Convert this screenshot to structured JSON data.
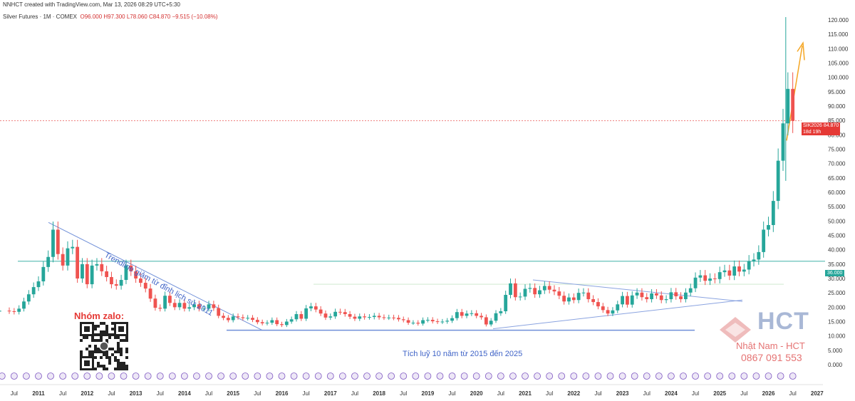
{
  "header": {
    "line1": "NNHCT created with TradingView.com, Mar 13, 2026 08:29 UTC+5:30",
    "instrument": "Silver Futures · 1M · COMEX",
    "ohlc": "O96.000 H97.300 L78.060 C84.870 −9.515 (−10.08%)"
  },
  "badges": {
    "price_symbol": "SIK2026",
    "price_value": "84.870",
    "price_time": "18d 19h",
    "level_value": "36.000"
  },
  "annotations": {
    "trendline": "Trendline giảm từ đỉnh lịch sử 2011",
    "accumulation": "Tích luỹ 10 năm từ 2015 đến 2025"
  },
  "branding": {
    "zalo": "Nhóm zalo:",
    "logo": "HCT",
    "name": "Nhật Nam - HCT",
    "phone": "0867 091 553"
  },
  "colors": {
    "up": "#26a69a",
    "down": "#ef5350",
    "trend": "#3f63c7",
    "arrow": "#f5a623",
    "level": "#26a69a",
    "price": "#e53935"
  },
  "chart_data": {
    "type": "candlestick",
    "y_ticks": [
      "120.000",
      "115.000",
      "110.000",
      "105.000",
      "100.000",
      "95.000",
      "90.000",
      "85.000",
      "80.000",
      "75.000",
      "70.000",
      "65.000",
      "60.000",
      "55.000",
      "50.000",
      "45.000",
      "40.000",
      "35.000",
      "30.000",
      "25.000",
      "20.000",
      "15.000",
      "10.000",
      "5.000",
      "0.000"
    ],
    "ylim": [
      0,
      120
    ],
    "x_ticks": [
      {
        "label": "Jul",
        "t": 2010.5
      },
      {
        "label": "2011",
        "t": 2011
      },
      {
        "label": "Jul",
        "t": 2011.5
      },
      {
        "label": "2012",
        "t": 2012
      },
      {
        "label": "Jul",
        "t": 2012.5
      },
      {
        "label": "2013",
        "t": 2013
      },
      {
        "label": "Jul",
        "t": 2013.5
      },
      {
        "label": "2014",
        "t": 2014
      },
      {
        "label": "Jul",
        "t": 2014.5
      },
      {
        "label": "2015",
        "t": 2015
      },
      {
        "label": "Jul",
        "t": 2015.5
      },
      {
        "label": "2016",
        "t": 2016
      },
      {
        "label": "Jul",
        "t": 2016.5
      },
      {
        "label": "2017",
        "t": 2017
      },
      {
        "label": "Jul",
        "t": 2017.5
      },
      {
        "label": "2018",
        "t": 2018
      },
      {
        "label": "Jul",
        "t": 2018.5
      },
      {
        "label": "2019",
        "t": 2019
      },
      {
        "label": "Jul",
        "t": 2019.5
      },
      {
        "label": "2020",
        "t": 2020
      },
      {
        "label": "Jul",
        "t": 2020.5
      },
      {
        "label": "2021",
        "t": 2021
      },
      {
        "label": "Jul",
        "t": 2021.5
      },
      {
        "label": "2022",
        "t": 2022
      },
      {
        "label": "Jul",
        "t": 2022.5
      },
      {
        "label": "2023",
        "t": 2023
      },
      {
        "label": "Jul",
        "t": 2023.5
      },
      {
        "label": "2024",
        "t": 2024
      },
      {
        "label": "Jul",
        "t": 2024.5
      },
      {
        "label": "2025",
        "t": 2025
      },
      {
        "label": "Jul",
        "t": 2025.5
      },
      {
        "label": "2026",
        "t": 2026
      },
      {
        "label": "Jul",
        "t": 2026.5
      },
      {
        "label": "2027",
        "t": 2027
      }
    ],
    "closes": [
      [
        2010.0,
        18.5
      ],
      [
        2010.2,
        18.8
      ],
      [
        2010.4,
        18.6
      ],
      [
        2010.5,
        18.4
      ],
      [
        2010.6,
        19.5
      ],
      [
        2010.7,
        22.0
      ],
      [
        2010.8,
        24.5
      ],
      [
        2010.9,
        27.0
      ],
      [
        2011.0,
        29.0
      ],
      [
        2011.1,
        34.0
      ],
      [
        2011.2,
        37.5
      ],
      [
        2011.3,
        47.0
      ],
      [
        2011.4,
        38.5
      ],
      [
        2011.5,
        34.5
      ],
      [
        2011.6,
        40.5
      ],
      [
        2011.7,
        41.0
      ],
      [
        2011.8,
        30.0
      ],
      [
        2011.9,
        35.0
      ],
      [
        2012.0,
        28.0
      ],
      [
        2012.1,
        34.5
      ],
      [
        2012.2,
        35.0
      ],
      [
        2012.3,
        32.5
      ],
      [
        2012.4,
        30.5
      ],
      [
        2012.5,
        28.0
      ],
      [
        2012.6,
        27.5
      ],
      [
        2012.7,
        29.5
      ],
      [
        2012.8,
        34.5
      ],
      [
        2012.9,
        32.5
      ],
      [
        2013.0,
        30.0
      ],
      [
        2013.1,
        28.5
      ],
      [
        2013.2,
        26.5
      ],
      [
        2013.3,
        23.0
      ],
      [
        2013.4,
        19.8
      ],
      [
        2013.5,
        19.5
      ],
      [
        2013.6,
        24.0
      ],
      [
        2013.7,
        21.5
      ],
      [
        2013.8,
        20.0
      ],
      [
        2013.9,
        21.5
      ],
      [
        2014.0,
        19.5
      ],
      [
        2014.1,
        20.0
      ],
      [
        2014.2,
        21.0
      ],
      [
        2014.3,
        19.5
      ],
      [
        2014.4,
        19.5
      ],
      [
        2014.5,
        21.0
      ],
      [
        2014.6,
        19.7
      ],
      [
        2014.7,
        17.0
      ],
      [
        2014.8,
        16.3
      ],
      [
        2014.9,
        15.5
      ],
      [
        2015.0,
        16.8
      ],
      [
        2015.1,
        16.5
      ],
      [
        2015.2,
        16.2
      ],
      [
        2015.3,
        16.3
      ],
      [
        2015.4,
        15.6
      ],
      [
        2015.5,
        14.8
      ],
      [
        2015.6,
        14.4
      ],
      [
        2015.7,
        14.6
      ],
      [
        2015.8,
        15.5
      ],
      [
        2015.9,
        14.1
      ],
      [
        2016.0,
        13.8
      ],
      [
        2016.1,
        15.0
      ],
      [
        2016.2,
        15.8
      ],
      [
        2016.3,
        17.6
      ],
      [
        2016.4,
        16.0
      ],
      [
        2016.5,
        19.6
      ],
      [
        2016.6,
        20.3
      ],
      [
        2016.7,
        19.2
      ],
      [
        2016.8,
        17.8
      ],
      [
        2016.9,
        16.4
      ],
      [
        2017.0,
        16.8
      ],
      [
        2017.1,
        18.4
      ],
      [
        2017.2,
        18.3
      ],
      [
        2017.3,
        17.6
      ],
      [
        2017.4,
        16.7
      ],
      [
        2017.5,
        16.0
      ],
      [
        2017.6,
        16.8
      ],
      [
        2017.7,
        16.5
      ],
      [
        2017.8,
        16.6
      ],
      [
        2017.9,
        17.0
      ],
      [
        2018.0,
        16.5
      ],
      [
        2018.1,
        16.4
      ],
      [
        2018.2,
        16.4
      ],
      [
        2018.3,
        16.3
      ],
      [
        2018.4,
        15.8
      ],
      [
        2018.5,
        15.5
      ],
      [
        2018.6,
        14.6
      ],
      [
        2018.7,
        14.6
      ],
      [
        2018.8,
        14.3
      ],
      [
        2018.9,
        15.5
      ],
      [
        2019.0,
        15.6
      ],
      [
        2019.1,
        15.1
      ],
      [
        2019.2,
        14.9
      ],
      [
        2019.3,
        15.0
      ],
      [
        2019.4,
        15.3
      ],
      [
        2019.5,
        16.2
      ],
      [
        2019.6,
        18.3
      ],
      [
        2019.7,
        17.0
      ],
      [
        2019.8,
        17.8
      ],
      [
        2019.9,
        17.9
      ],
      [
        2020.0,
        17.0
      ],
      [
        2020.1,
        16.5
      ],
      [
        2020.2,
        14.0
      ],
      [
        2020.3,
        15.3
      ],
      [
        2020.4,
        17.9
      ],
      [
        2020.5,
        18.6
      ],
      [
        2020.6,
        24.3
      ],
      [
        2020.7,
        28.3
      ],
      [
        2020.8,
        23.5
      ],
      [
        2020.9,
        23.7
      ],
      [
        2021.0,
        26.4
      ],
      [
        2021.1,
        26.7
      ],
      [
        2021.2,
        24.5
      ],
      [
        2021.3,
        25.9
      ],
      [
        2021.4,
        27.4
      ],
      [
        2021.5,
        26.1
      ],
      [
        2021.6,
        25.5
      ],
      [
        2021.7,
        24.0
      ],
      [
        2021.8,
        22.0
      ],
      [
        2021.9,
        23.4
      ],
      [
        2022.0,
        22.5
      ],
      [
        2022.1,
        25.0
      ],
      [
        2022.2,
        25.1
      ],
      [
        2022.3,
        22.8
      ],
      [
        2022.4,
        21.8
      ],
      [
        2022.5,
        20.3
      ],
      [
        2022.6,
        19.0
      ],
      [
        2022.7,
        17.8
      ],
      [
        2022.8,
        18.9
      ],
      [
        2022.9,
        21.0
      ],
      [
        2023.0,
        23.9
      ],
      [
        2023.1,
        20.9
      ],
      [
        2023.2,
        24.1
      ],
      [
        2023.3,
        25.1
      ],
      [
        2023.4,
        23.5
      ],
      [
        2023.5,
        22.8
      ],
      [
        2023.6,
        24.8
      ],
      [
        2023.7,
        24.1
      ],
      [
        2023.8,
        22.5
      ],
      [
        2023.9,
        22.8
      ],
      [
        2024.0,
        25.2
      ],
      [
        2024.1,
        23.8
      ],
      [
        2024.2,
        22.8
      ],
      [
        2024.3,
        25.1
      ],
      [
        2024.4,
        26.6
      ],
      [
        2024.5,
        30.3
      ],
      [
        2024.6,
        31.1
      ],
      [
        2024.7,
        29.2
      ],
      [
        2024.8,
        30.0
      ],
      [
        2024.9,
        29.8
      ],
      [
        2025.0,
        32.2
      ],
      [
        2025.1,
        32.8
      ],
      [
        2025.2,
        31.0
      ],
      [
        2025.3,
        34.2
      ],
      [
        2025.4,
        32.4
      ],
      [
        2025.5,
        33.1
      ],
      [
        2025.6,
        36.0
      ],
      [
        2025.7,
        36.6
      ],
      [
        2025.8,
        39.2
      ],
      [
        2025.9,
        47.0
      ],
      [
        2026.0,
        48.6
      ],
      [
        2026.1,
        57.0
      ],
      [
        2026.2,
        71.0
      ],
      [
        2026.3,
        84.0
      ],
      [
        2026.4,
        96.0
      ],
      [
        2026.5,
        84.87
      ]
    ],
    "horizontal_level": 36,
    "last_price": 84.87
  }
}
